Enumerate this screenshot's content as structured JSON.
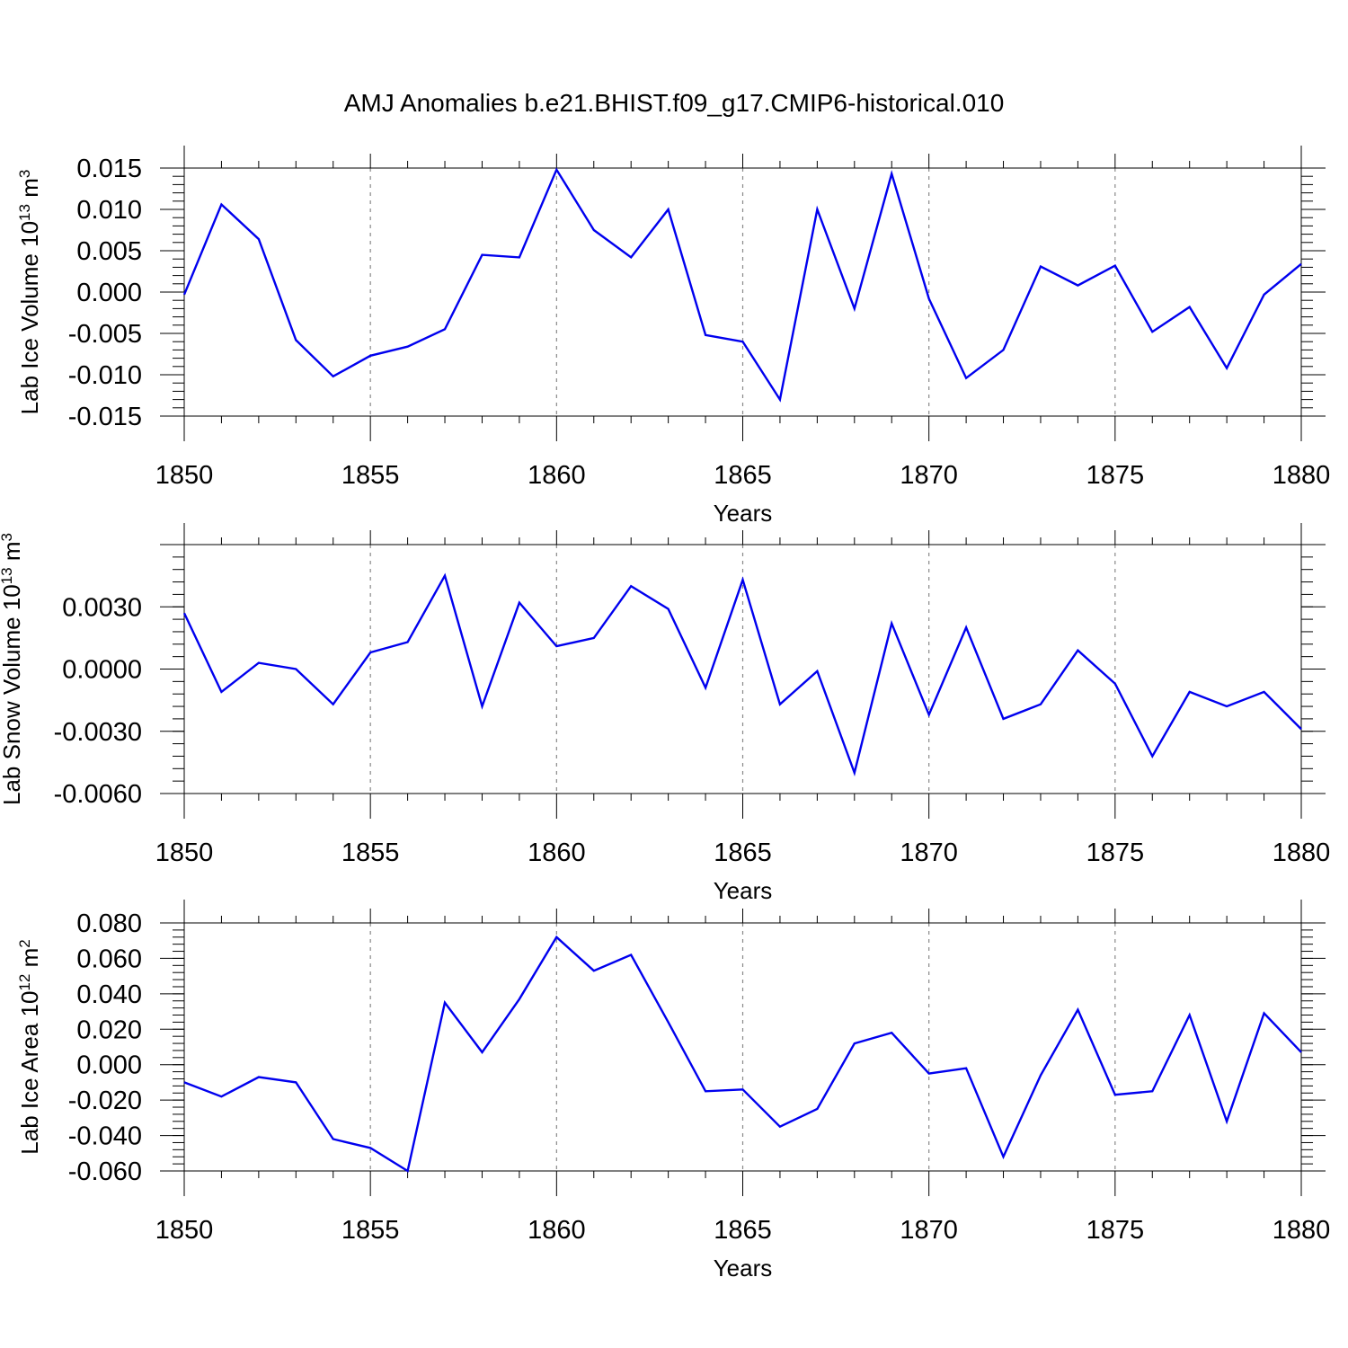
{
  "figure": {
    "title": "AMJ Anomalies b.e21.BHIST.f09_g17.CMIP6-historical.010"
  },
  "chart_data": [
    {
      "type": "line",
      "xlabel": "Years",
      "ylabel": {
        "text": "Lab Ice Volume 10",
        "exp": "13",
        "unit": "m",
        "unit_exp": "3"
      },
      "xlim": [
        1850,
        1880
      ],
      "ylim": [
        -0.015,
        0.015
      ],
      "xticks": [
        1850,
        1855,
        1860,
        1865,
        1870,
        1875,
        1880
      ],
      "yticks": [
        -0.015,
        -0.01,
        -0.005,
        0.0,
        0.005,
        0.01,
        0.015
      ],
      "ytick_labels": [
        "-0.015",
        "-0.010",
        "-0.005",
        "0.000",
        "0.005",
        "0.010",
        "0.015"
      ],
      "grid": "vertical-dashed",
      "color": "#0000ee",
      "series": [
        {
          "name": "Lab Ice Volume",
          "x": [
            1850,
            1851,
            1852,
            1853,
            1854,
            1855,
            1856,
            1857,
            1858,
            1859,
            1860,
            1861,
            1862,
            1863,
            1864,
            1865,
            1866,
            1867,
            1868,
            1869,
            1870,
            1871,
            1872,
            1873,
            1874,
            1875,
            1876,
            1877,
            1878,
            1879,
            1880
          ],
          "values": [
            -0.0003,
            0.0106,
            0.0064,
            -0.0058,
            -0.0102,
            -0.0077,
            -0.0066,
            -0.0045,
            0.0045,
            0.0042,
            0.0148,
            0.0075,
            0.0042,
            0.01,
            -0.0052,
            -0.006,
            -0.013,
            0.01,
            -0.002,
            0.0143,
            -0.0008,
            -0.0104,
            -0.007,
            0.0031,
            0.0008,
            0.0032,
            -0.0048,
            -0.0018,
            -0.0092,
            -0.0003,
            0.0034
          ]
        }
      ]
    },
    {
      "type": "line",
      "xlabel": "Years",
      "ylabel": {
        "text": "Lab Snow Volume 10",
        "exp": "13",
        "unit": "m",
        "unit_exp": "3"
      },
      "xlim": [
        1850,
        1880
      ],
      "ylim": [
        -0.006,
        0.006
      ],
      "xticks": [
        1850,
        1855,
        1860,
        1865,
        1870,
        1875,
        1880
      ],
      "yticks": [
        -0.006,
        -0.003,
        0.0,
        0.003
      ],
      "ytick_labels": [
        "-0.0060",
        "-0.0030",
        "0.0000",
        "0.0030"
      ],
      "grid": "vertical-dashed",
      "color": "#0000ee",
      "series": [
        {
          "name": "Lab Snow Volume",
          "x": [
            1850,
            1851,
            1852,
            1853,
            1854,
            1855,
            1856,
            1857,
            1858,
            1859,
            1860,
            1861,
            1862,
            1863,
            1864,
            1865,
            1866,
            1867,
            1868,
            1869,
            1870,
            1871,
            1872,
            1873,
            1874,
            1875,
            1876,
            1877,
            1878,
            1879,
            1880
          ],
          "values": [
            0.0027,
            -0.0011,
            0.0003,
            0.0,
            -0.0017,
            0.0008,
            0.0013,
            0.0045,
            -0.0018,
            0.0032,
            0.0011,
            0.0015,
            0.004,
            0.0029,
            -0.0009,
            0.0043,
            -0.0017,
            -0.0001,
            -0.005,
            0.0022,
            -0.0022,
            0.002,
            -0.0024,
            -0.0017,
            0.0009,
            -0.0007,
            -0.0042,
            -0.0011,
            -0.0018,
            -0.0011,
            -0.0029
          ]
        }
      ]
    },
    {
      "type": "line",
      "xlabel": "Years",
      "ylabel": {
        "text": "Lab Ice Area 10",
        "exp": "12",
        "unit": "m",
        "unit_exp": "2"
      },
      "xlim": [
        1850,
        1880
      ],
      "ylim": [
        -0.06,
        0.08
      ],
      "xticks": [
        1850,
        1855,
        1860,
        1865,
        1870,
        1875,
        1880
      ],
      "yticks": [
        -0.06,
        -0.04,
        -0.02,
        0.0,
        0.02,
        0.04,
        0.06,
        0.08
      ],
      "ytick_labels": [
        "-0.060",
        "-0.040",
        "-0.020",
        "0.000",
        "0.020",
        "0.040",
        "0.060",
        "0.080"
      ],
      "grid": "vertical-dashed",
      "color": "#0000ee",
      "series": [
        {
          "name": "Lab Ice Area",
          "x": [
            1850,
            1851,
            1852,
            1853,
            1854,
            1855,
            1856,
            1857,
            1858,
            1859,
            1860,
            1861,
            1862,
            1863,
            1864,
            1865,
            1866,
            1867,
            1868,
            1869,
            1870,
            1871,
            1872,
            1873,
            1874,
            1875,
            1876,
            1877,
            1878,
            1879,
            1880
          ],
          "values": [
            -0.01,
            -0.018,
            -0.007,
            -0.01,
            -0.042,
            -0.047,
            -0.06,
            0.035,
            0.007,
            0.037,
            0.072,
            0.053,
            0.062,
            0.024,
            -0.015,
            -0.014,
            -0.035,
            -0.025,
            0.012,
            0.018,
            -0.005,
            -0.002,
            -0.052,
            -0.006,
            0.031,
            -0.017,
            -0.015,
            0.028,
            -0.032,
            0.029,
            0.007
          ]
        }
      ]
    }
  ]
}
